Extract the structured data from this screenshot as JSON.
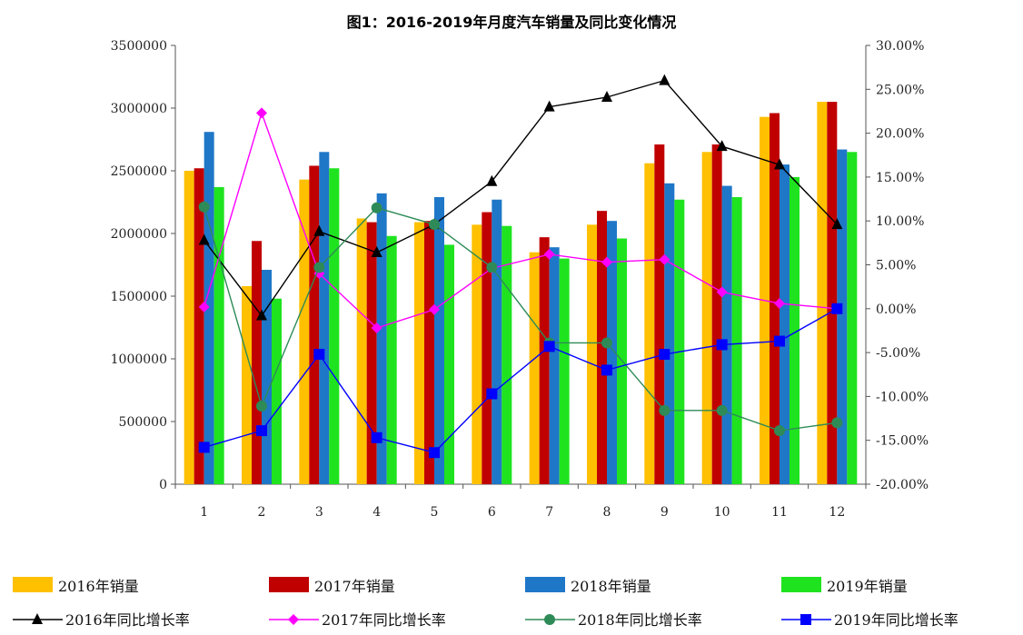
{
  "chart_data": {
    "type": "bar",
    "title": "图1：2016-2019年月度汽车销量及同比变化情况",
    "categories": [
      "1",
      "2",
      "3",
      "4",
      "5",
      "6",
      "7",
      "8",
      "9",
      "10",
      "11",
      "12"
    ],
    "left_axis": {
      "ylim": [
        0,
        3500000
      ],
      "ticks": [
        "0",
        "500000",
        "1000000",
        "1500000",
        "2000000",
        "2500000",
        "3000000",
        "3500000"
      ]
    },
    "right_axis": {
      "ylim": [
        -20,
        30
      ],
      "ticks": [
        "-20.00%",
        "-15.00%",
        "-10.00%",
        "-5.00%",
        "0.00%",
        "5.00%",
        "10.00%",
        "15.00%",
        "20.00%",
        "25.00%",
        "30.00%"
      ]
    },
    "bar_series": [
      {
        "name": "2016年销量",
        "color": "#FFC000",
        "values": [
          2500000,
          1580000,
          2430000,
          2120000,
          2090000,
          2070000,
          1850000,
          2070000,
          2560000,
          2650000,
          2930000,
          3050000
        ]
      },
      {
        "name": "2017年销量",
        "color": "#C00000",
        "values": [
          2520000,
          1940000,
          2540000,
          2090000,
          2100000,
          2170000,
          1970000,
          2180000,
          2710000,
          2710000,
          2960000,
          3050000
        ]
      },
      {
        "name": "2018年销量",
        "color": "#1F77C8",
        "values": [
          2810000,
          1710000,
          2650000,
          2320000,
          2290000,
          2270000,
          1890000,
          2100000,
          2400000,
          2380000,
          2550000,
          2670000
        ]
      },
      {
        "name": "2019年销量",
        "color": "#1FE31F",
        "values": [
          2370000,
          1480000,
          2520000,
          1980000,
          1910000,
          2060000,
          1800000,
          1960000,
          2270000,
          2290000,
          2450000,
          2650000
        ]
      }
    ],
    "line_series": [
      {
        "name": "2016年同比增长率",
        "color": "#000000",
        "marker": "triangle",
        "values": [
          7.8,
          -0.8,
          8.8,
          6.4,
          9.6,
          14.5,
          23.0,
          24.1,
          26.0,
          18.5,
          16.4,
          9.6
        ]
      },
      {
        "name": "2017年同比增长率",
        "color": "#FF00FF",
        "marker": "diamond",
        "values": [
          0.2,
          22.3,
          4.0,
          -2.2,
          -0.1,
          4.6,
          6.2,
          5.3,
          5.6,
          1.9,
          0.6,
          0.0
        ]
      },
      {
        "name": "2018年同比增长率",
        "color": "#2E8B57",
        "marker": "circle",
        "values": [
          11.6,
          -11.1,
          4.7,
          11.5,
          9.6,
          4.7,
          -3.9,
          -3.9,
          -11.6,
          -11.6,
          -13.9,
          -13.0
        ]
      },
      {
        "name": "2019年同比增长率",
        "color": "#0000FF",
        "marker": "square",
        "values": [
          -15.8,
          -13.9,
          -5.2,
          -14.7,
          -16.4,
          -9.7,
          -4.3,
          -7.0,
          -5.2,
          -4.1,
          -3.7,
          0.0
        ]
      }
    ],
    "legend_position": "bottom"
  }
}
